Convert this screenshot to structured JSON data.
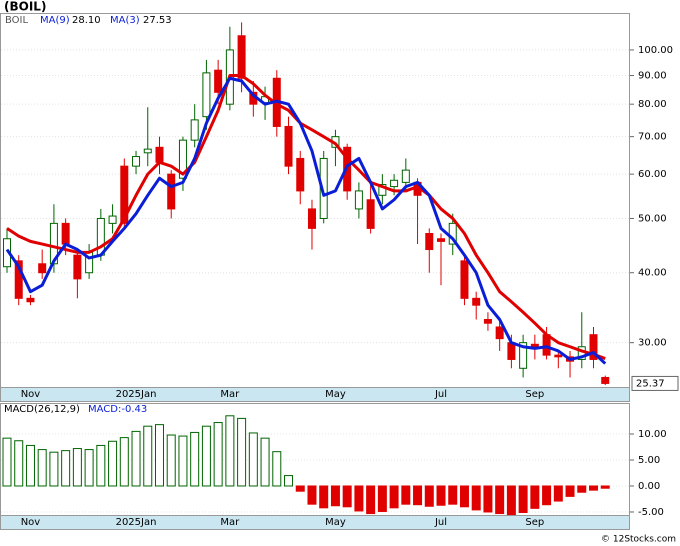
{
  "chart_data": [
    {
      "type": "candlestick",
      "title": "(BOIL)",
      "symbol": "BOIL",
      "footer": "© 12Stocks.com",
      "categories": [
        null,
        null,
        "Nov",
        null,
        null,
        null,
        null,
        null,
        null,
        null,
        null,
        "2025Jan",
        null,
        null,
        null,
        null,
        null,
        null,
        null,
        "Mar",
        null,
        null,
        null,
        null,
        null,
        null,
        null,
        null,
        "May",
        null,
        null,
        null,
        null,
        null,
        null,
        null,
        null,
        "Jul",
        null,
        null,
        null,
        null,
        null,
        null,
        null,
        "Sep",
        null,
        null,
        null,
        null,
        null,
        null
      ],
      "open": [
        41,
        42,
        36,
        41.5,
        41.5,
        49,
        43,
        40,
        43,
        49,
        62,
        62,
        65.5,
        67,
        60,
        59,
        69,
        76,
        92,
        80,
        106,
        84,
        80.5,
        89,
        73,
        64,
        52,
        50,
        67,
        67,
        52,
        54,
        55,
        57,
        58,
        58,
        47,
        46,
        45,
        42,
        36,
        33,
        32,
        30,
        27,
        29.8,
        31,
        28.5,
        28.3,
        28,
        31,
        26
      ],
      "high": [
        48,
        43,
        36.5,
        44,
        53,
        50,
        44,
        45,
        52,
        53,
        64,
        66,
        79,
        70,
        61,
        70,
        80,
        96,
        96,
        110,
        112,
        88,
        86,
        92,
        76,
        66,
        54,
        66,
        72,
        68,
        58,
        58,
        60,
        60,
        64,
        59,
        48,
        47,
        51,
        43,
        37,
        34,
        33,
        31,
        31,
        31,
        32,
        29,
        29,
        34,
        32,
        26.2
      ],
      "low": [
        40,
        35,
        35,
        39,
        40,
        43,
        36,
        39,
        42,
        47,
        48,
        60,
        62,
        60,
        50,
        56,
        67,
        72,
        80,
        78,
        84,
        76,
        75,
        70,
        60,
        53,
        44,
        49,
        62,
        54,
        50,
        47,
        53,
        55,
        56,
        45,
        40,
        38,
        43,
        35,
        33,
        31.5,
        29,
        27,
        26,
        28,
        28,
        27,
        26,
        27,
        27,
        25.2
      ],
      "close": [
        46,
        36,
        35.5,
        40,
        49,
        45,
        39,
        43.5,
        50,
        50.5,
        49,
        64.5,
        66.5,
        63,
        52,
        69,
        75,
        91,
        84,
        100,
        89,
        80,
        82.5,
        73,
        62,
        56,
        48,
        64,
        70,
        56,
        56,
        48,
        57.5,
        58.5,
        61,
        55,
        44,
        45.5,
        49,
        36,
        35,
        32.5,
        30.5,
        28,
        30,
        29.3,
        28.5,
        28.3,
        27.8,
        29.5,
        28,
        25.37
      ],
      "last_label": "25.37",
      "up_color": "#006400",
      "down_color": "#e00000",
      "series": [
        {
          "name": "MA(9)",
          "color": "#e00000",
          "value_label": "28.10",
          "values": [
            48,
            46.5,
            45.5,
            45,
            44.5,
            44,
            43.5,
            43.5,
            44.5,
            46,
            50,
            55,
            60,
            63,
            62,
            60,
            63,
            70,
            78,
            90,
            90,
            87,
            83,
            80,
            78,
            74,
            72,
            70,
            68,
            64,
            61,
            58,
            57,
            56,
            56,
            57,
            55,
            52,
            50,
            47,
            43,
            40,
            37,
            35.5,
            34,
            32.5,
            31,
            30,
            29.5,
            29,
            28.6,
            28.1
          ]
        },
        {
          "name": "MA(3)",
          "color": "#0a1ed8",
          "value_label": "27.53",
          "values": [
            44,
            41,
            37,
            38,
            42,
            45,
            44,
            42.5,
            43,
            45.5,
            48,
            51,
            55,
            59,
            57,
            58,
            64,
            74,
            82,
            89,
            88,
            83,
            80,
            81,
            80,
            74,
            66,
            55,
            56,
            62,
            64,
            58,
            52,
            54,
            57,
            58,
            55,
            48,
            46,
            43,
            40,
            35,
            33,
            30,
            29.5,
            29.3,
            29.5,
            29,
            28,
            28.3,
            28.8,
            27.53
          ]
        }
      ],
      "yscale": "log",
      "ylim": [
        25,
        116.4
      ],
      "yticks": [
        {
          "value": 30,
          "label": "30.00"
        },
        {
          "value": 40,
          "label": "40.00"
        },
        {
          "value": 50,
          "label": "50.00"
        },
        {
          "value": 60,
          "label": "60.00"
        },
        {
          "value": 70,
          "label": "70.00"
        },
        {
          "value": 80,
          "label": "80.00"
        },
        {
          "value": 90,
          "label": "90.00"
        },
        {
          "value": 100,
          "label": "100.00"
        }
      ]
    },
    {
      "type": "bar",
      "title": "MACD(26,12,9)",
      "value_label": "MACD:-0.43",
      "categories": [
        null,
        null,
        "Nov",
        null,
        null,
        null,
        null,
        null,
        null,
        null,
        null,
        "2025Jan",
        null,
        null,
        null,
        null,
        null,
        null,
        null,
        "Mar",
        null,
        null,
        null,
        null,
        null,
        null,
        null,
        null,
        "May",
        null,
        null,
        null,
        null,
        null,
        null,
        null,
        null,
        "Jul",
        null,
        null,
        null,
        null,
        null,
        null,
        null,
        "Sep",
        null,
        null,
        null,
        null,
        null,
        null
      ],
      "values": [
        9.2,
        8.7,
        7.8,
        7.0,
        6.5,
        6.8,
        7.2,
        7.0,
        7.8,
        8.6,
        9.3,
        10.5,
        11.5,
        11.8,
        9.8,
        9.6,
        10.3,
        11.5,
        12.2,
        13.5,
        13.0,
        10.2,
        9.2,
        6.6,
        2.0,
        -1.0,
        -3.5,
        -4.2,
        -3.8,
        -4.0,
        -4.8,
        -5.3,
        -4.9,
        -4.2,
        -3.5,
        -3.6,
        -3.9,
        -3.7,
        -3.5,
        -4.0,
        -4.6,
        -5.0,
        -5.3,
        -5.5,
        -5.1,
        -4.3,
        -3.6,
        -2.9,
        -2.0,
        -1.2,
        -0.8,
        -0.43
      ],
      "up_color": "#006400",
      "down_color": "#e00000",
      "ylim": [
        -5.58,
        15.96
      ],
      "yticks": [
        {
          "value": -5,
          "label": "-5.00"
        },
        {
          "value": 0,
          "label": "0.00"
        },
        {
          "value": 5,
          "label": "5.00"
        },
        {
          "value": 10,
          "label": "10.00"
        }
      ]
    }
  ]
}
